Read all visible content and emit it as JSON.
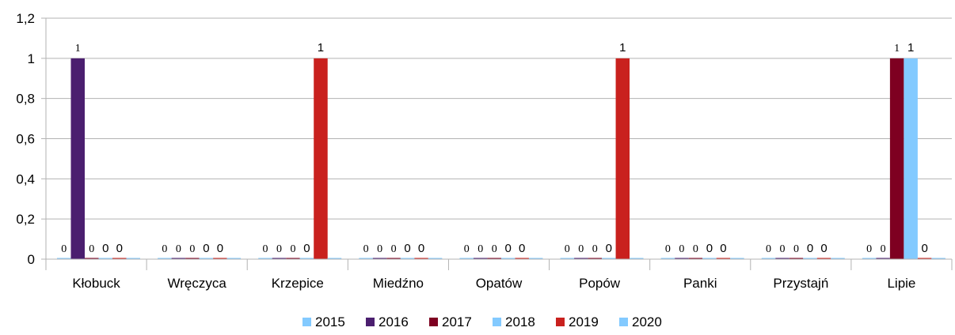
{
  "chart_data": {
    "type": "bar",
    "categories": [
      "Kłobuck",
      "Wręczyca",
      "Krzepice",
      "Miedźno",
      "Opatów",
      "Popów",
      "Panki",
      "Przystajń",
      "Lipie"
    ],
    "series": [
      {
        "name": "2015",
        "color": "#83CAFF",
        "values": [
          0,
          0,
          0,
          0,
          0,
          0,
          0,
          0,
          0
        ]
      },
      {
        "name": "2016",
        "color": "#4B1F6F",
        "values": [
          1,
          0,
          0,
          0,
          0,
          0,
          0,
          0,
          0
        ]
      },
      {
        "name": "2017",
        "color": "#7E0021",
        "values": [
          0,
          0,
          0,
          0,
          0,
          0,
          0,
          0,
          1
        ]
      },
      {
        "name": "2018",
        "color": "#83CAFF",
        "values": [
          0,
          0,
          0,
          0,
          0,
          0,
          0,
          0,
          1
        ]
      },
      {
        "name": "2019",
        "color": "#C9211E",
        "values": [
          0,
          0,
          1,
          0,
          0,
          1,
          0,
          0,
          0
        ]
      },
      {
        "name": "2020",
        "color": "#83CAFF",
        "values": [
          0,
          0,
          0,
          0,
          0,
          0,
          0,
          0,
          0
        ]
      }
    ],
    "data_labels": [
      [
        "0",
        "1",
        "0",
        "0",
        "0",
        ""
      ],
      [
        "0",
        "0",
        "0",
        "0",
        "0",
        ""
      ],
      [
        "0",
        "0",
        "0",
        "0",
        "1",
        ""
      ],
      [
        "0",
        "0",
        "0",
        "0",
        "0",
        ""
      ],
      [
        "0",
        "0",
        "0",
        "0",
        "0",
        ""
      ],
      [
        "0",
        "0",
        "0",
        "0",
        "1",
        ""
      ],
      [
        "0",
        "0",
        "0",
        "0",
        "0",
        ""
      ],
      [
        "0",
        "0",
        "0",
        "0",
        "0",
        ""
      ],
      [
        "0",
        "0",
        "1",
        "1",
        "0",
        ""
      ]
    ],
    "ylim": [
      0,
      1.2
    ],
    "yticks": [
      "0",
      "0,2",
      "0,4",
      "0,6",
      "0,8",
      "1",
      "1,2"
    ],
    "grid": true,
    "legend_position": "bottom"
  }
}
